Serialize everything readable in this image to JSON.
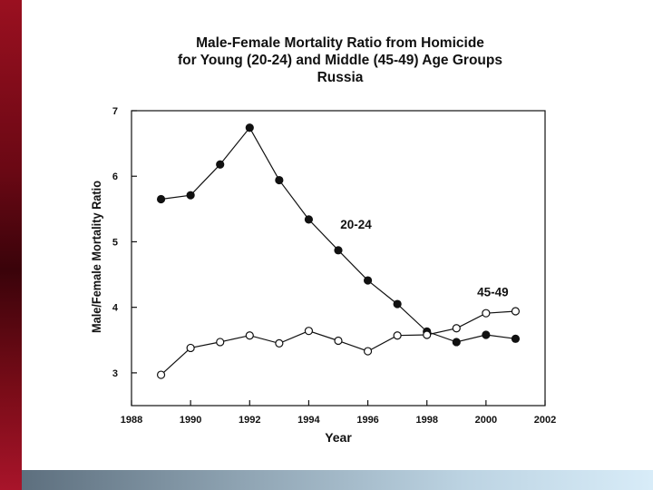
{
  "chart_data": {
    "type": "line",
    "title_lines": [
      "Male-Female Mortality Ratio from Homicide",
      "for Young (20-24) and Middle (45-49) Age Groups",
      "Russia"
    ],
    "xlabel": "Year",
    "ylabel": "Male/Female Mortality Ratio",
    "xlim": [
      1988,
      2002
    ],
    "ylim": [
      2.5,
      7
    ],
    "xticks": [
      1988,
      1990,
      1992,
      1994,
      1996,
      1998,
      2000,
      2002
    ],
    "yticks": [
      3,
      4,
      5,
      6,
      7
    ],
    "grid": false,
    "series": [
      {
        "name": "20-24",
        "marker": "filled-circle",
        "color": "#111111",
        "x": [
          1989,
          1990,
          1991,
          1992,
          1993,
          1994,
          1995,
          1996,
          1997,
          1998,
          1999,
          2000,
          2001
        ],
        "values": [
          5.65,
          5.71,
          6.18,
          6.74,
          5.94,
          5.34,
          4.87,
          4.41,
          4.05,
          3.63,
          3.47,
          3.58,
          3.52
        ]
      },
      {
        "name": "45-49",
        "marker": "open-circle",
        "color": "#111111",
        "x": [
          1989,
          1990,
          1991,
          1992,
          1993,
          1994,
          1995,
          1996,
          1997,
          1998,
          1999,
          2000,
          2001
        ],
        "values": [
          2.97,
          3.38,
          3.47,
          3.57,
          3.45,
          3.64,
          3.49,
          3.33,
          3.57,
          3.58,
          3.68,
          3.91,
          3.94
        ]
      }
    ]
  }
}
